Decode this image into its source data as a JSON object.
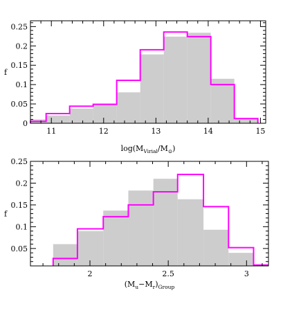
{
  "colors": {
    "hist_fill": "#cdcdcd",
    "step_line": "#ff00ff",
    "axis": "#000000"
  },
  "chart_data": [
    {
      "type": "bar",
      "ylabel": "f",
      "xlabel": "log(M_Virial/M_⊙)",
      "xlabel_parts": {
        "base": "log(M",
        "sub1": "Virial",
        "mid": "/M",
        "sub2": "⊙",
        "end": ")"
      },
      "xlim": [
        10.6,
        15.1
      ],
      "ylim": [
        0,
        0.265
      ],
      "xticks": [
        11,
        12,
        13,
        14,
        15
      ],
      "xtick_labels": [
        "11",
        "12",
        "13",
        "14",
        "15"
      ],
      "yticks": [
        0,
        0.05,
        0.1,
        0.15,
        0.2,
        0.25
      ],
      "ytick_labels": [
        "0",
        "0.05",
        "0.1",
        "0.15",
        "0.2",
        "0.25"
      ],
      "grid": false,
      "series": [
        {
          "style": "filled-histogram",
          "bin_edges": [
            10.6,
            10.9,
            11.35,
            11.8,
            12.25,
            12.7,
            13.15,
            13.6,
            14.05,
            14.5,
            14.95
          ],
          "values": [
            0.01,
            0.02,
            0.038,
            0.048,
            0.08,
            0.178,
            0.224,
            0.234,
            0.115,
            0.012
          ]
        },
        {
          "style": "step-line",
          "bin_edges": [
            10.6,
            10.9,
            11.35,
            11.8,
            12.25,
            12.7,
            13.15,
            13.6,
            14.05,
            14.5,
            14.95
          ],
          "values": [
            0.005,
            0.025,
            0.044,
            0.049,
            0.111,
            0.19,
            0.236,
            0.224,
            0.1,
            0.012
          ]
        }
      ]
    },
    {
      "type": "bar",
      "ylabel": "f",
      "xlabel": "(M_u−M_r)_Group",
      "xlabel_parts": {
        "base": "(M",
        "sub1": "u",
        "mid": "−M",
        "sub2": "r",
        "end": ")",
        "sub3": "Group"
      },
      "xlim": [
        1.62,
        3.14
      ],
      "ylim": [
        0.01,
        0.25
      ],
      "xticks": [
        2,
        2.5,
        3
      ],
      "xtick_labels": [
        "2",
        "2.5",
        "3"
      ],
      "yticks": [
        0.05,
        0.1,
        0.15,
        0.2,
        0.25
      ],
      "ytick_labels": [
        "0.05",
        "0.1",
        "0.15",
        "0.2",
        "0.25"
      ],
      "grid": false,
      "series": [
        {
          "style": "filled-histogram",
          "bin_edges": [
            1.765,
            1.92,
            2.085,
            2.245,
            2.405,
            2.56,
            2.725,
            2.885,
            3.045
          ],
          "values": [
            0.06,
            0.09,
            0.137,
            0.183,
            0.21,
            0.163,
            0.093,
            0.04
          ]
        },
        {
          "style": "step-line",
          "bin_edges": [
            1.765,
            1.92,
            2.085,
            2.245,
            2.405,
            2.56,
            2.725,
            2.885,
            3.045,
            3.14
          ],
          "values": [
            0.027,
            0.095,
            0.123,
            0.15,
            0.18,
            0.22,
            0.146,
            0.052,
            0.012
          ]
        }
      ]
    }
  ]
}
